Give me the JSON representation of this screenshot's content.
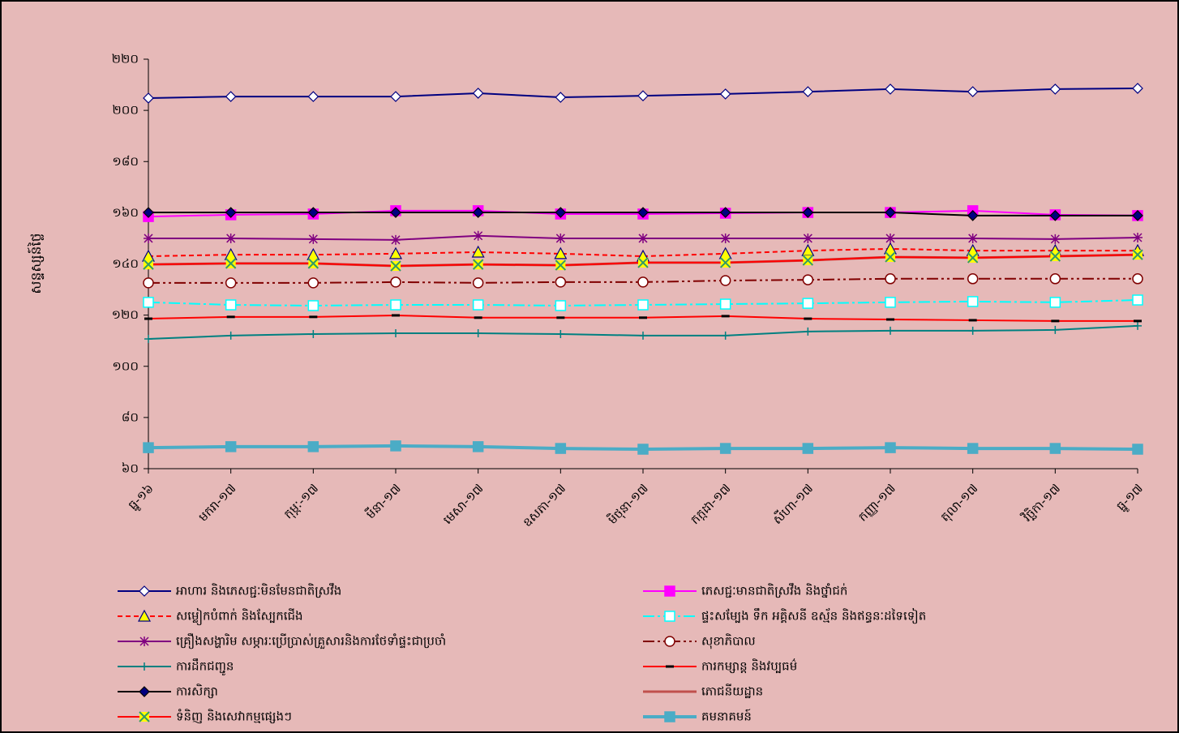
{
  "chart_data": {
    "type": "line",
    "y_label": "សន្ទស្សន៍ថ្លៃ",
    "categories": [
      "ធ្នូ-១៦",
      "មករា-១៧",
      "កុម្ភៈ-១៧",
      "មីនា-១៧",
      "មេសា-១៧",
      "ឧសភា-១៧",
      "មិថុនា-១៧",
      "កក្កដា-១៧",
      "សីហា-១៧",
      "កញ្ញា-១៧",
      "តុលា-១៧",
      "វិច្ឆិកា-១៧",
      "ធ្នូ-១៧"
    ],
    "ylim": [
      60,
      220
    ],
    "yticks": [
      {
        "value": 60,
        "label": "៦០"
      },
      {
        "value": 80,
        "label": "៨០"
      },
      {
        "value": 100,
        "label": "១០០"
      },
      {
        "value": 120,
        "label": "១២០"
      },
      {
        "value": 140,
        "label": "១៤០"
      },
      {
        "value": 160,
        "label": "១៦០"
      },
      {
        "value": 180,
        "label": "១៨០"
      },
      {
        "value": 200,
        "label": "២០០"
      },
      {
        "value": 220,
        "label": "២២០"
      }
    ],
    "grid": false,
    "legend": "bottom",
    "series": [
      {
        "name": "អាហារ និងភេសជ្ជៈមិនមែនជាតិស្រវឹង",
        "color": "#000080",
        "marker": "diamond",
        "marker_fill": "#ffffff",
        "values": [
          204.8,
          205.4,
          205.4,
          205.4,
          206.7,
          205.1,
          205.7,
          206.4,
          207.3,
          208.3,
          207.3,
          208.3,
          208.6
        ]
      },
      {
        "name": "ភេសជ្ជៈមានជាតិស្រវឹង និងថ្នាំជក់",
        "color": "#ff00ff",
        "marker": "square",
        "marker_fill": "#ff00ff",
        "values": [
          158.5,
          159.2,
          159.5,
          160.8,
          160.8,
          159.5,
          159.5,
          159.8,
          160.1,
          160.1,
          160.8,
          159.2,
          158.9
        ]
      },
      {
        "name": "សម្លៀកបំពាក់ និងស្បែកជើង",
        "color": "#ff0000",
        "dash": "6,4",
        "marker": "triangle",
        "marker_fill": "#ffff00",
        "marker_stroke": "#000080",
        "values": [
          143.0,
          143.6,
          143.6,
          144.0,
          144.6,
          144.0,
          143.0,
          144.0,
          145.2,
          145.9,
          145.2,
          145.2,
          145.2
        ]
      },
      {
        "name": "ផ្ទះសម្បែង ទឹក អគ្គិសនី ឧស្ម័ន និងឥន្ធនៈដទៃទៀត",
        "color": "#00ffff",
        "dash": "14,4,3,4",
        "marker": "square",
        "marker_fill": "#ffffff",
        "values": [
          125.0,
          124.0,
          123.7,
          124.0,
          124.0,
          123.7,
          124.0,
          124.3,
          124.6,
          125.0,
          125.3,
          125.0,
          125.9
        ]
      },
      {
        "name": "គ្រឿងសង្ហារិម សម្ភារៈប្រើប្រាស់គ្រួសារនិងការថែទាំផ្ទះជាប្រចាំ",
        "color": "#800080",
        "marker": "star",
        "values": [
          150.0,
          150.0,
          149.7,
          149.4,
          151.0,
          150.0,
          150.0,
          150.0,
          150.0,
          150.0,
          150.0,
          149.7,
          150.3
        ]
      },
      {
        "name": "សុខាភិបាល",
        "color": "#800000",
        "dash": "14,4,3,4,3,4",
        "marker": "circle",
        "marker_fill": "#ffffff",
        "values": [
          132.6,
          132.6,
          132.6,
          132.9,
          132.6,
          132.9,
          132.9,
          133.5,
          133.8,
          134.2,
          134.2,
          134.2,
          134.2
        ]
      },
      {
        "name": "ការដឹកជញ្ជូន",
        "color": "#008080",
        "marker": "plus",
        "values": [
          110.7,
          112.0,
          112.6,
          112.9,
          112.9,
          112.6,
          112.0,
          112.0,
          113.6,
          113.9,
          113.9,
          114.2,
          115.8
        ]
      },
      {
        "name": "ការកម្សាន្ត និងវប្បធម៌",
        "color": "#ff0000",
        "marker": "dash",
        "marker_stroke": "#000000",
        "values": [
          118.6,
          119.3,
          119.3,
          119.9,
          119.0,
          119.0,
          119.0,
          119.6,
          118.6,
          118.3,
          118.0,
          117.7,
          117.7
        ]
      },
      {
        "name": "ការសិក្សា",
        "color": "#000000",
        "marker": "diamond",
        "marker_fill": "#000080",
        "values": [
          160.1,
          160.1,
          160.1,
          160.1,
          160.1,
          160.1,
          160.1,
          160.1,
          160.1,
          160.1,
          158.9,
          158.9,
          158.9
        ]
      },
      {
        "name": "ភោជនីយដ្ឋាន",
        "color": "#c0504d",
        "width": 3,
        "values": [
          139.8,
          140.2,
          140.2,
          139.2,
          139.8,
          139.5,
          140.5,
          140.5,
          141.4,
          142.7,
          142.4,
          143.0,
          143.6
        ]
      },
      {
        "name": "ទំនិញ និងសេវាកម្មផ្សេងៗ",
        "color": "#ff0000",
        "marker": "x",
        "marker_fill": "#ffff00",
        "marker_stroke": "#339966",
        "values": [
          139.8,
          140.2,
          140.2,
          139.2,
          139.8,
          139.5,
          140.5,
          140.5,
          141.4,
          142.7,
          142.4,
          143.0,
          143.6
        ]
      },
      {
        "name": "គមនាគមន៍",
        "color": "#4bacc6",
        "width": 4,
        "marker": "square",
        "marker_fill": "#4bacc6",
        "values": [
          68.2,
          68.6,
          68.6,
          68.9,
          68.6,
          67.9,
          67.6,
          67.9,
          67.9,
          68.2,
          67.9,
          67.9,
          67.6
        ]
      }
    ]
  }
}
